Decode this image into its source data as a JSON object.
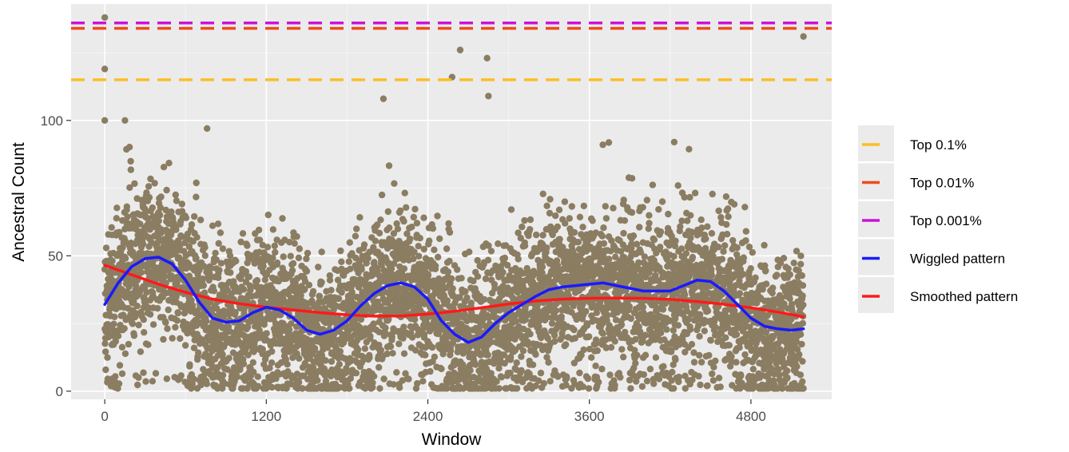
{
  "chart_data": {
    "type": "scatter",
    "xlabel": "Window",
    "ylabel": "Ancestral Count",
    "xlim": [
      -250,
      5400
    ],
    "ylim": [
      -3,
      143
    ],
    "x_ticks": [
      {
        "value": 0,
        "label": "0"
      },
      {
        "value": 1200,
        "label": "1200"
      },
      {
        "value": 2400,
        "label": "2400"
      },
      {
        "value": 3600,
        "label": "3600"
      },
      {
        "value": 4800,
        "label": "4800"
      }
    ],
    "y_ticks": [
      {
        "value": 0,
        "label": "0"
      },
      {
        "value": 50,
        "label": "50"
      },
      {
        "value": 100,
        "label": "100"
      }
    ],
    "grid": true,
    "legend_position": "right",
    "point_color": "#8b7d62",
    "n_points": 5200,
    "outliers": [
      {
        "x": 0,
        "y": 138
      },
      {
        "x": 0,
        "y": 119
      },
      {
        "x": 0,
        "y": 100
      },
      {
        "x": 150,
        "y": 100
      },
      {
        "x": 760,
        "y": 97
      },
      {
        "x": 2070,
        "y": 108
      },
      {
        "x": 2580,
        "y": 116
      },
      {
        "x": 2640,
        "y": 126
      },
      {
        "x": 2840,
        "y": 123
      },
      {
        "x": 2850,
        "y": 109
      },
      {
        "x": 3700,
        "y": 91
      },
      {
        "x": 4230,
        "y": 92
      },
      {
        "x": 5190,
        "y": 131
      }
    ],
    "threshold_lines": [
      {
        "name": "Top 0.1%",
        "y": 115,
        "color": "#fbbf24"
      },
      {
        "name": "Top 0.01%",
        "y": 134,
        "color": "#f04a1a"
      },
      {
        "name": "Top 0.001%",
        "y": 136,
        "color": "#cc12d9"
      }
    ],
    "series": [
      {
        "name": "Wiggled pattern",
        "color": "#1a1aff",
        "x": [
          0,
          100,
          200,
          300,
          400,
          500,
          600,
          700,
          800,
          900,
          1000,
          1100,
          1200,
          1300,
          1400,
          1500,
          1600,
          1700,
          1800,
          1900,
          2000,
          2100,
          2200,
          2300,
          2400,
          2500,
          2600,
          2700,
          2800,
          2900,
          3000,
          3100,
          3200,
          3300,
          3400,
          3500,
          3600,
          3700,
          3800,
          3900,
          4000,
          4100,
          4200,
          4300,
          4400,
          4500,
          4600,
          4700,
          4800,
          4900,
          5000,
          5100,
          5190
        ],
        "values": [
          32,
          40,
          46,
          49,
          49.5,
          47,
          41,
          33,
          27,
          25.5,
          26,
          29,
          31,
          30,
          27,
          22.5,
          21,
          22.5,
          26,
          31.5,
          36,
          39,
          40,
          38.5,
          34,
          26,
          21,
          18,
          20,
          25,
          29,
          32,
          35,
          37.5,
          38.5,
          39,
          39.5,
          40,
          39,
          38,
          37,
          37,
          37,
          39,
          41,
          40.5,
          37,
          32,
          27,
          24,
          23,
          22.5,
          23
        ]
      },
      {
        "name": "Smoothed pattern",
        "color": "#ff1a1a",
        "x": [
          0,
          200,
          400,
          600,
          800,
          1000,
          1200,
          1400,
          1600,
          1800,
          2000,
          2200,
          2400,
          2600,
          2800,
          3000,
          3200,
          3400,
          3600,
          3800,
          4000,
          4200,
          4400,
          4600,
          4800,
          5000,
          5190
        ],
        "values": [
          46.5,
          43,
          39.5,
          36.5,
          34,
          32.3,
          31,
          30,
          29,
          28.2,
          27.7,
          27.8,
          28.5,
          29.5,
          30.8,
          32.2,
          33.3,
          34,
          34.3,
          34.4,
          34.3,
          33.9,
          33.1,
          32.1,
          30.8,
          29.2,
          27.5
        ]
      }
    ],
    "legend": [
      {
        "label": "Top 0.1%",
        "color": "#fbbf24"
      },
      {
        "label": "Top 0.01%",
        "color": "#f04a1a"
      },
      {
        "label": "Top 0.001%",
        "color": "#cc12d9"
      },
      {
        "label": "Wiggled pattern",
        "color": "#1a1aff"
      },
      {
        "label": "Smoothed pattern",
        "color": "#ff1a1a"
      }
    ]
  }
}
